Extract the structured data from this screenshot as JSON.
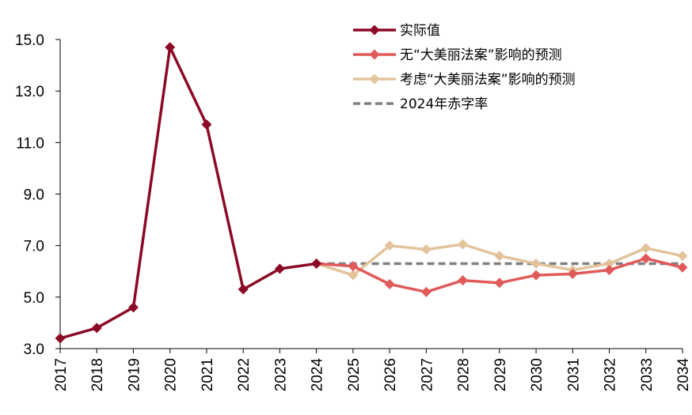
{
  "chart_data": {
    "type": "line",
    "x": [
      "2017",
      "2018",
      "2019",
      "2020",
      "2021",
      "2022",
      "2023",
      "2024",
      "2025",
      "2026",
      "2027",
      "2028",
      "2029",
      "2030",
      "2031",
      "2032",
      "2033",
      "2034"
    ],
    "ylim": [
      3.0,
      15.0
    ],
    "yticks": [
      3.0,
      5.0,
      7.0,
      9.0,
      11.0,
      13.0,
      15.0
    ],
    "grid": false,
    "legend_position": "top-right",
    "series": [
      {
        "name": "实际值",
        "color": "#8B0A25",
        "marker": "diamond",
        "style": "solid",
        "values": [
          3.4,
          3.8,
          4.6,
          14.7,
          11.7,
          5.3,
          6.1,
          6.3,
          null,
          null,
          null,
          null,
          null,
          null,
          null,
          null,
          null,
          null
        ]
      },
      {
        "name": "无“大美丽法案”影响的预测",
        "color": "#E05A5A",
        "marker": "diamond",
        "style": "solid",
        "values": [
          null,
          null,
          null,
          null,
          null,
          null,
          null,
          6.3,
          6.2,
          5.5,
          5.2,
          5.65,
          5.55,
          5.85,
          5.9,
          6.05,
          6.5,
          6.15
        ]
      },
      {
        "name": "考虑“大美丽法案”影响的预测",
        "color": "#E3C39C",
        "marker": "diamond",
        "style": "solid",
        "values": [
          null,
          null,
          null,
          null,
          null,
          null,
          null,
          6.3,
          5.85,
          7.0,
          6.85,
          7.05,
          6.6,
          6.3,
          6.05,
          6.3,
          6.9,
          6.6
        ]
      },
      {
        "name": "2024年赤字率",
        "color": "#808080",
        "marker": "none",
        "style": "dashed",
        "values": [
          null,
          null,
          null,
          null,
          null,
          null,
          null,
          6.3,
          6.3,
          6.3,
          6.3,
          6.3,
          6.3,
          6.3,
          6.3,
          6.3,
          6.3,
          6.3
        ]
      }
    ]
  }
}
